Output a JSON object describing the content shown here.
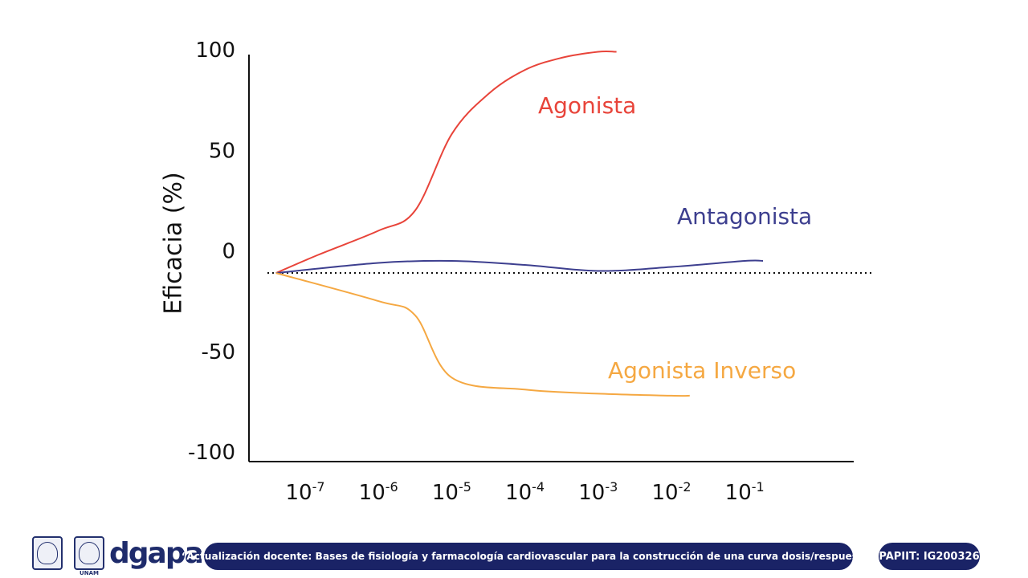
{
  "chart_data": {
    "type": "line",
    "ylabel": "Eficacia (%)",
    "xlabel": "",
    "ylim": [
      -100,
      100
    ],
    "yticks": [
      "100",
      "50",
      "0",
      "-50",
      "-100"
    ],
    "ytick_values": [
      100,
      50,
      0,
      -50,
      -100
    ],
    "x_scale": "log",
    "xticks": [
      {
        "base": "10",
        "exp": "-7",
        "value": 1e-07
      },
      {
        "base": "10",
        "exp": "-6",
        "value": 1e-06
      },
      {
        "base": "10",
        "exp": "-5",
        "value": 1e-05
      },
      {
        "base": "10",
        "exp": "-4",
        "value": 0.0001
      },
      {
        "base": "10",
        "exp": "-3",
        "value": 0.001
      },
      {
        "base": "10",
        "exp": "-2",
        "value": 0.01
      },
      {
        "base": "10",
        "exp": "-1",
        "value": 0.1
      }
    ],
    "baseline_y": -11,
    "series": [
      {
        "name": "Agonista",
        "color": "#e8443a",
        "x": [
          4e-08,
          1.5e-07,
          1e-06,
          3.16e-06,
          1e-05,
          3.16e-05,
          0.0001,
          0.000316,
          0.001,
          0.00178
        ],
        "y": [
          -11,
          -2,
          10,
          20,
          58,
          78,
          90,
          96,
          99,
          99
        ]
      },
      {
        "name": "Antagonista",
        "color": "#3d3f8f",
        "x": [
          4e-08,
          1e-06,
          1e-05,
          0.0001,
          0.001,
          0.01,
          0.1,
          0.178
        ],
        "y": [
          -11,
          -6,
          -5,
          -7,
          -10,
          -8,
          -5,
          -5
        ]
      },
      {
        "name": "Agonista Inverso",
        "color": "#f5a842",
        "x": [
          4e-08,
          1e-06,
          3.16e-06,
          1e-05,
          0.0001,
          0.001,
          0.01,
          0.0178
        ],
        "y": [
          -11,
          -25,
          -32,
          -63,
          -69,
          -71,
          -72,
          -72
        ]
      }
    ]
  },
  "footer": {
    "seal_caption": "UNAM",
    "dgapa": "dgapa",
    "course_title": "“Actualización docente: Bases de fisiología y farmacología cardiovascular para la construcción de una curva dosis/respuesta”",
    "project_code": "PAPIIT: IG200326"
  }
}
